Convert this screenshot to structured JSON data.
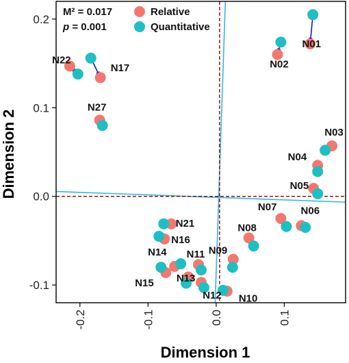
{
  "chart_data": {
    "type": "scatter",
    "title": "",
    "xlabel": "Dimension 1",
    "ylabel": "Dimension 2",
    "xlim": [
      -0.235,
      0.19
    ],
    "ylim": [
      -0.12,
      0.22
    ],
    "xticks": [
      -0.2,
      -0.1,
      0.0,
      0.1
    ],
    "xtick_labels": [
      "-0.2",
      "-0.1",
      "0.0",
      "0.1"
    ],
    "yticks": [
      -0.1,
      0.0,
      0.1,
      0.2
    ],
    "ytick_labels": [
      "-0.1",
      "0.0",
      "0.1",
      "0.2"
    ],
    "grid": false,
    "legend_position": "top-left",
    "stats": [
      "M² = 0.017",
      "p = 0.001"
    ],
    "series": [
      {
        "name": "Relative",
        "color": "#F4776E"
      },
      {
        "name": "Quantitative",
        "color": "#1DBFC4"
      }
    ],
    "arrow_color": "#1414C8",
    "points": [
      {
        "label": "N01",
        "relative": [
          0.138,
          0.172
        ],
        "quantitative": [
          0.142,
          0.205
        ]
      },
      {
        "label": "N02",
        "relative": [
          0.09,
          0.16
        ],
        "quantitative": [
          0.095,
          0.174
        ]
      },
      {
        "label": "N22",
        "relative": [
          -0.215,
          0.147
        ],
        "quantitative": [
          -0.203,
          0.138
        ]
      },
      {
        "label": "N17",
        "relative": [
          -0.17,
          0.134
        ],
        "quantitative": [
          -0.184,
          0.156
        ]
      },
      {
        "label": "N27",
        "relative": [
          -0.171,
          0.086
        ],
        "quantitative": [
          -0.167,
          0.08
        ]
      },
      {
        "label": "N03",
        "relative": [
          0.17,
          0.057
        ],
        "quantitative": [
          0.16,
          0.052
        ]
      },
      {
        "label": "N04",
        "relative": [
          0.149,
          0.035
        ],
        "quantitative": [
          0.149,
          0.028
        ]
      },
      {
        "label": "N05",
        "relative": [
          0.143,
          0.009
        ],
        "quantitative": [
          0.149,
          0.003
        ]
      },
      {
        "label": "N07",
        "relative": [
          0.095,
          -0.025
        ],
        "quantitative": [
          0.103,
          -0.034
        ]
      },
      {
        "label": "N06",
        "relative": [
          0.125,
          -0.033
        ],
        "quantitative": [
          0.131,
          -0.035
        ]
      },
      {
        "label": "N08",
        "relative": [
          0.048,
          -0.047
        ],
        "quantitative": [
          0.055,
          -0.056
        ]
      },
      {
        "label": "N21",
        "relative": [
          -0.066,
          -0.031
        ],
        "quantitative": [
          -0.077,
          -0.031
        ]
      },
      {
        "label": "N16",
        "relative": [
          -0.076,
          -0.048
        ],
        "quantitative": [
          -0.084,
          -0.045
        ]
      },
      {
        "label": "N09",
        "relative": [
          0.025,
          -0.071
        ],
        "quantitative": [
          0.024,
          -0.08
        ]
      },
      {
        "label": "N11",
        "relative": [
          -0.026,
          -0.077
        ],
        "quantitative": [
          -0.022,
          -0.083
        ]
      },
      {
        "label": "N14",
        "relative": [
          -0.061,
          -0.079
        ],
        "quantitative": [
          -0.052,
          -0.076
        ]
      },
      {
        "label": "N15",
        "relative": [
          -0.074,
          -0.086
        ],
        "quantitative": [
          -0.081,
          -0.08
        ]
      },
      {
        "label": "N13",
        "relative": [
          -0.041,
          -0.091
        ],
        "quantitative": [
          -0.044,
          -0.098
        ]
      },
      {
        "label": "N12",
        "relative": [
          -0.022,
          -0.097
        ],
        "quantitative": [
          -0.018,
          -0.103
        ]
      },
      {
        "label": "N10",
        "relative": [
          0.016,
          -0.107
        ],
        "quantitative": [
          0.01,
          -0.106
        ]
      }
    ],
    "lines": [
      {
        "name": "relative-axis",
        "color": "#8B0000",
        "dash": true
      },
      {
        "name": "quantitative-axis",
        "color": "#2EB8E6",
        "dash": false
      }
    ]
  }
}
